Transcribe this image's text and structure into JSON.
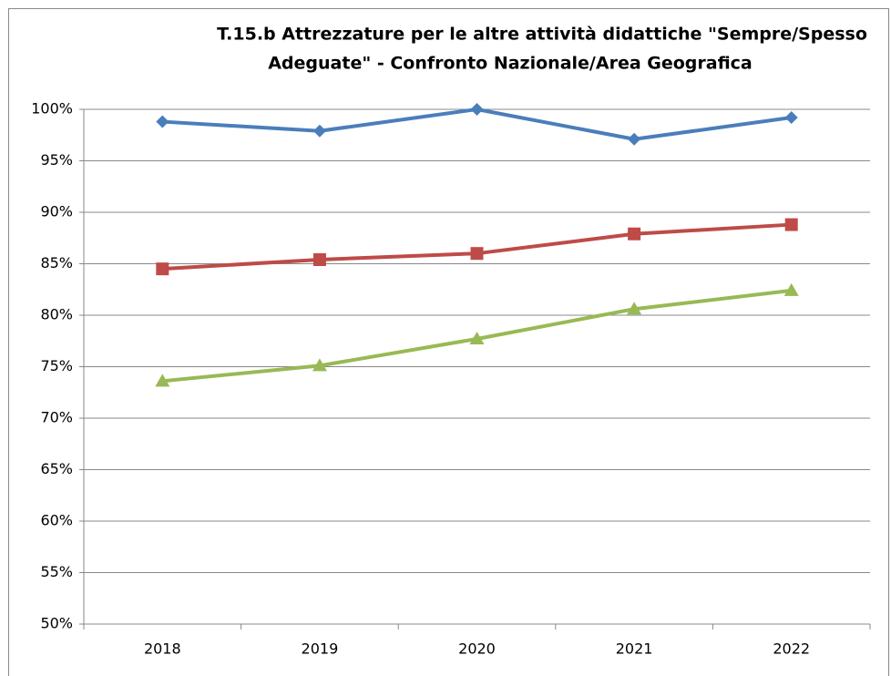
{
  "chart_data": {
    "type": "line",
    "title": [
      "T.15.b Attrezzature per le altre attività didattiche \"Sempre/Spesso",
      "Adeguate\" - Confronto Nazionale/Area Geografica"
    ],
    "categories": [
      "2018",
      "2019",
      "2020",
      "2021",
      "2022"
    ],
    "series": [
      {
        "color": "#4a7ebb",
        "marker": "diamond",
        "values": [
          98.8,
          97.9,
          100,
          97.1,
          99.2
        ]
      },
      {
        "color": "#be4b48",
        "marker": "square",
        "values": [
          84.5,
          85.4,
          86.0,
          87.9,
          88.8
        ]
      },
      {
        "color": "#98b954",
        "marker": "triangle",
        "values": [
          73.6,
          75.1,
          77.7,
          80.6,
          82.4
        ]
      }
    ],
    "ylim": [
      50,
      100
    ],
    "yticks": [
      {
        "value": 50,
        "label": "50%"
      },
      {
        "value": 55,
        "label": "55%"
      },
      {
        "value": 60,
        "label": "60%"
      },
      {
        "value": 65,
        "label": "65%"
      },
      {
        "value": 70,
        "label": "70%"
      },
      {
        "value": 75,
        "label": "75%"
      },
      {
        "value": 80,
        "label": "80%"
      },
      {
        "value": 85,
        "label": "85%"
      },
      {
        "value": 90,
        "label": "90%"
      },
      {
        "value": 95,
        "label": "95%"
      },
      {
        "value": 100,
        "label": "100%"
      }
    ],
    "grid": true
  }
}
